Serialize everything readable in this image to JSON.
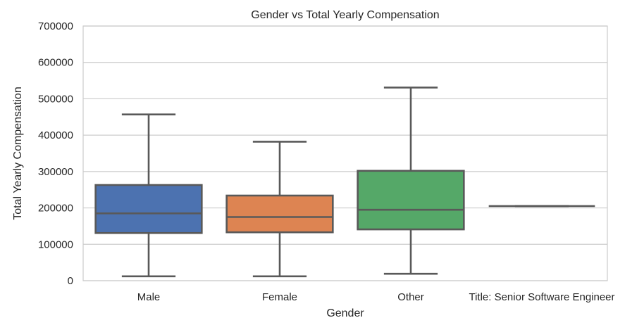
{
  "chart_data": {
    "type": "box",
    "title": "Gender vs Total Yearly Compensation",
    "xlabel": "Gender",
    "ylabel": "Total Yearly Compensation",
    "ylim": [
      0,
      700000
    ],
    "yticks": [
      0,
      100000,
      200000,
      300000,
      400000,
      500000,
      600000,
      700000
    ],
    "ytick_labels": [
      "0",
      "100000",
      "200000",
      "300000",
      "400000",
      "500000",
      "600000",
      "700000"
    ],
    "grid": "horizontal",
    "categories": [
      "Male",
      "Female",
      "Other",
      "Title: Senior Software Engineer"
    ],
    "boxes": [
      {
        "category": "Male",
        "whisker_low": 12000,
        "q1": 131000,
        "median": 185000,
        "q3": 263000,
        "whisker_high": 457000,
        "color": "#4c72b0"
      },
      {
        "category": "Female",
        "whisker_low": 12000,
        "q1": 133000,
        "median": 175000,
        "q3": 234000,
        "whisker_high": 382000,
        "color": "#dd8452"
      },
      {
        "category": "Other",
        "whisker_low": 19000,
        "q1": 141000,
        "median": 195000,
        "q3": 302000,
        "whisker_high": 531000,
        "color": "#55a868"
      },
      {
        "category": "Title: Senior Software Engineer",
        "whisker_low": 205000,
        "q1": 205000,
        "median": 205000,
        "q3": 205000,
        "whisker_high": 205000,
        "color": "#c44e52"
      }
    ],
    "colors": {
      "grid": "#cccccc",
      "frame": "#cccccc",
      "line": "#595959",
      "text": "#262626"
    }
  }
}
